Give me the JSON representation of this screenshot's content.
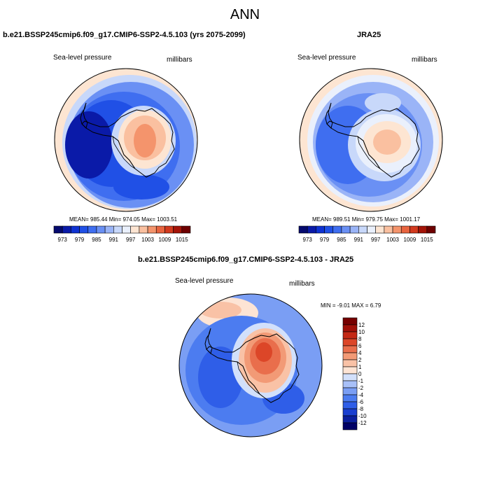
{
  "page": {
    "main_title": "ANN"
  },
  "chart_data": [
    {
      "type": "heatmap",
      "projection": "south-polar-stereographic",
      "title": "b.e21.BSSP245cmip6.f09_g17.CMIP6-SSP2-4.5.103 (yrs 2075-2099)",
      "variable": "Sea-level pressure",
      "units": "millibars",
      "stats": {
        "text": "MEAN= 985.44   Min= 974.05   Max= 1003.51",
        "mean": 985.44,
        "min": 974.05,
        "max": 1003.51
      },
      "colorbar": {
        "orientation": "horizontal",
        "levels": [
          973,
          976,
          979,
          982,
          985,
          988,
          991,
          994,
          997,
          1000,
          1003,
          1006,
          1009,
          1012,
          1015
        ],
        "tick_labels": [
          "973",
          "979",
          "985",
          "991",
          "997",
          "1003",
          "1009",
          "1015"
        ],
        "colors": [
          "#050a6e",
          "#0a1aa8",
          "#0f32d2",
          "#2050e6",
          "#3f6ef0",
          "#6a90f4",
          "#9ab4f7",
          "#c8d8fa",
          "#eaf0fc",
          "#fde5d2",
          "#fac0a0",
          "#f4946c",
          "#e8643f",
          "#d23a1e",
          "#a41408",
          "#6e0000"
        ]
      },
      "data": {
        "field": "annual mean SLP",
        "mean": 985.44,
        "min": 974.05,
        "max": 1003.51
      }
    },
    {
      "type": "heatmap",
      "projection": "south-polar-stereographic",
      "title": "JRA25",
      "variable": "Sea-level pressure",
      "units": "millibars",
      "stats": {
        "text": "MEAN= 989.51   Min= 979.75   Max= 1001.17",
        "mean": 989.51,
        "min": 979.75,
        "max": 1001.17
      },
      "colorbar": {
        "orientation": "horizontal",
        "levels": [
          973,
          976,
          979,
          982,
          985,
          988,
          991,
          994,
          997,
          1000,
          1003,
          1006,
          1009,
          1012,
          1015
        ],
        "tick_labels": [
          "973",
          "979",
          "985",
          "991",
          "997",
          "1003",
          "1009",
          "1015"
        ],
        "colors": [
          "#050a6e",
          "#0a1aa8",
          "#0f32d2",
          "#2050e6",
          "#3f6ef0",
          "#6a90f4",
          "#9ab4f7",
          "#c8d8fa",
          "#eaf0fc",
          "#fde5d2",
          "#fac0a0",
          "#f4946c",
          "#e8643f",
          "#d23a1e",
          "#a41408",
          "#6e0000"
        ]
      },
      "data": {
        "field": "annual mean SLP",
        "mean": 989.51,
        "min": 979.75,
        "max": 1001.17
      }
    },
    {
      "type": "heatmap",
      "projection": "south-polar-stereographic",
      "title": "b.e21.BSSP245cmip6.f09_g17.CMIP6-SSP2-4.5.103 - JRA25",
      "variable": "Sea-level pressure",
      "units": "millibars",
      "stats": {
        "text": "MIN =  -9.01  MAX =   6.79",
        "min": -9.01,
        "max": 6.79
      },
      "colorbar": {
        "orientation": "vertical",
        "levels": [
          -12,
          -10,
          -8,
          -6,
          -4,
          -2,
          -1,
          0,
          1,
          2,
          4,
          6,
          8,
          10,
          12
        ],
        "tick_labels": [
          "12",
          "10",
          "8",
          "6",
          "4",
          "2",
          "1",
          "0",
          "-1",
          "-2",
          "-4",
          "-6",
          "-8",
          "-10",
          "-12"
        ],
        "colors": [
          "#000066",
          "#0b1f9e",
          "#1a3fd0",
          "#2f5ee8",
          "#4c7cf0",
          "#7a9ef4",
          "#a8c0f8",
          "#d2e0fb",
          "#fde4d4",
          "#f9c2a6",
          "#f29a76",
          "#e96e4c",
          "#dc4628",
          "#c42814",
          "#a01008",
          "#760000"
        ]
      },
      "data": {
        "field": "annual mean SLP difference",
        "min": -9.01,
        "max": 6.79
      }
    }
  ]
}
